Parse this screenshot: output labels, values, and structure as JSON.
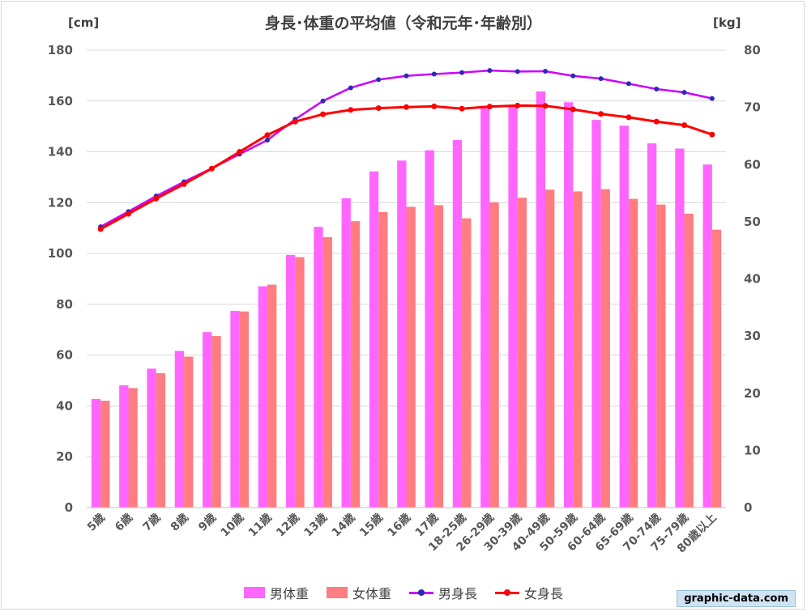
{
  "chart_data": {
    "type": "bar",
    "title": "身長･体重の平均値（令和元年･年齢別）",
    "ylabel_left": "[cm]",
    "ylabel_right": "[kg]",
    "ylim_left": [
      0,
      180
    ],
    "ylim_right": [
      0,
      80
    ],
    "yticks_left": [
      0,
      20,
      40,
      60,
      80,
      100,
      120,
      140,
      160,
      180
    ],
    "yticks_right": [
      0,
      10,
      20,
      30,
      40,
      50,
      60,
      70,
      80
    ],
    "categories": [
      "5歳",
      "6歳",
      "7歳",
      "8歳",
      "9歳",
      "10歳",
      "11歳",
      "12歳",
      "13歳",
      "14歳",
      "15歳",
      "16歳",
      "17歳",
      "18-25歳",
      "26-29歳",
      "30-39歳",
      "40-49歳",
      "50-59歳",
      "60-64歳",
      "65-69歳",
      "70-74歳",
      "75-79歳",
      "80歳以上"
    ],
    "series": [
      {
        "name": "男体重",
        "kind": "bar",
        "axis": "right",
        "color": "#ff66ff",
        "values": [
          19.0,
          21.4,
          24.3,
          27.4,
          30.7,
          34.4,
          38.7,
          44.2,
          49.1,
          54.1,
          58.8,
          60.7,
          62.5,
          64.3,
          70.1,
          70.3,
          72.8,
          70.9,
          67.8,
          66.8,
          63.7,
          62.8,
          60.0
        ]
      },
      {
        "name": "女体重",
        "kind": "bar",
        "axis": "right",
        "color": "#ff7c80",
        "values": [
          18.7,
          20.9,
          23.5,
          26.4,
          30.0,
          34.3,
          39.0,
          43.8,
          47.3,
          50.1,
          51.7,
          52.6,
          52.9,
          50.6,
          53.4,
          54.2,
          55.6,
          55.3,
          55.7,
          54.0,
          53.0,
          51.4,
          48.6
        ]
      },
      {
        "name": "男身長",
        "kind": "line",
        "axis": "left",
        "color": "#cc00ff",
        "marker": "#2a2ab8",
        "values": [
          110.5,
          116.5,
          122.6,
          128.2,
          133.5,
          139.1,
          144.6,
          152.8,
          160.0,
          165.2,
          168.4,
          169.9,
          170.6,
          171.2,
          172.0,
          171.6,
          171.7,
          169.9,
          168.8,
          166.8,
          164.7,
          163.4,
          161.0
        ]
      },
      {
        "name": "女身長",
        "kind": "line",
        "axis": "left",
        "color": "#ff0000",
        "marker": "#ff0000",
        "values": [
          109.6,
          115.6,
          121.6,
          127.3,
          133.4,
          140.0,
          146.6,
          151.9,
          154.8,
          156.5,
          157.2,
          157.6,
          157.9,
          157.0,
          157.8,
          158.2,
          158.1,
          156.7,
          154.9,
          153.6,
          151.9,
          150.5,
          146.8
        ]
      }
    ]
  },
  "watermark": "graphic-data.com"
}
